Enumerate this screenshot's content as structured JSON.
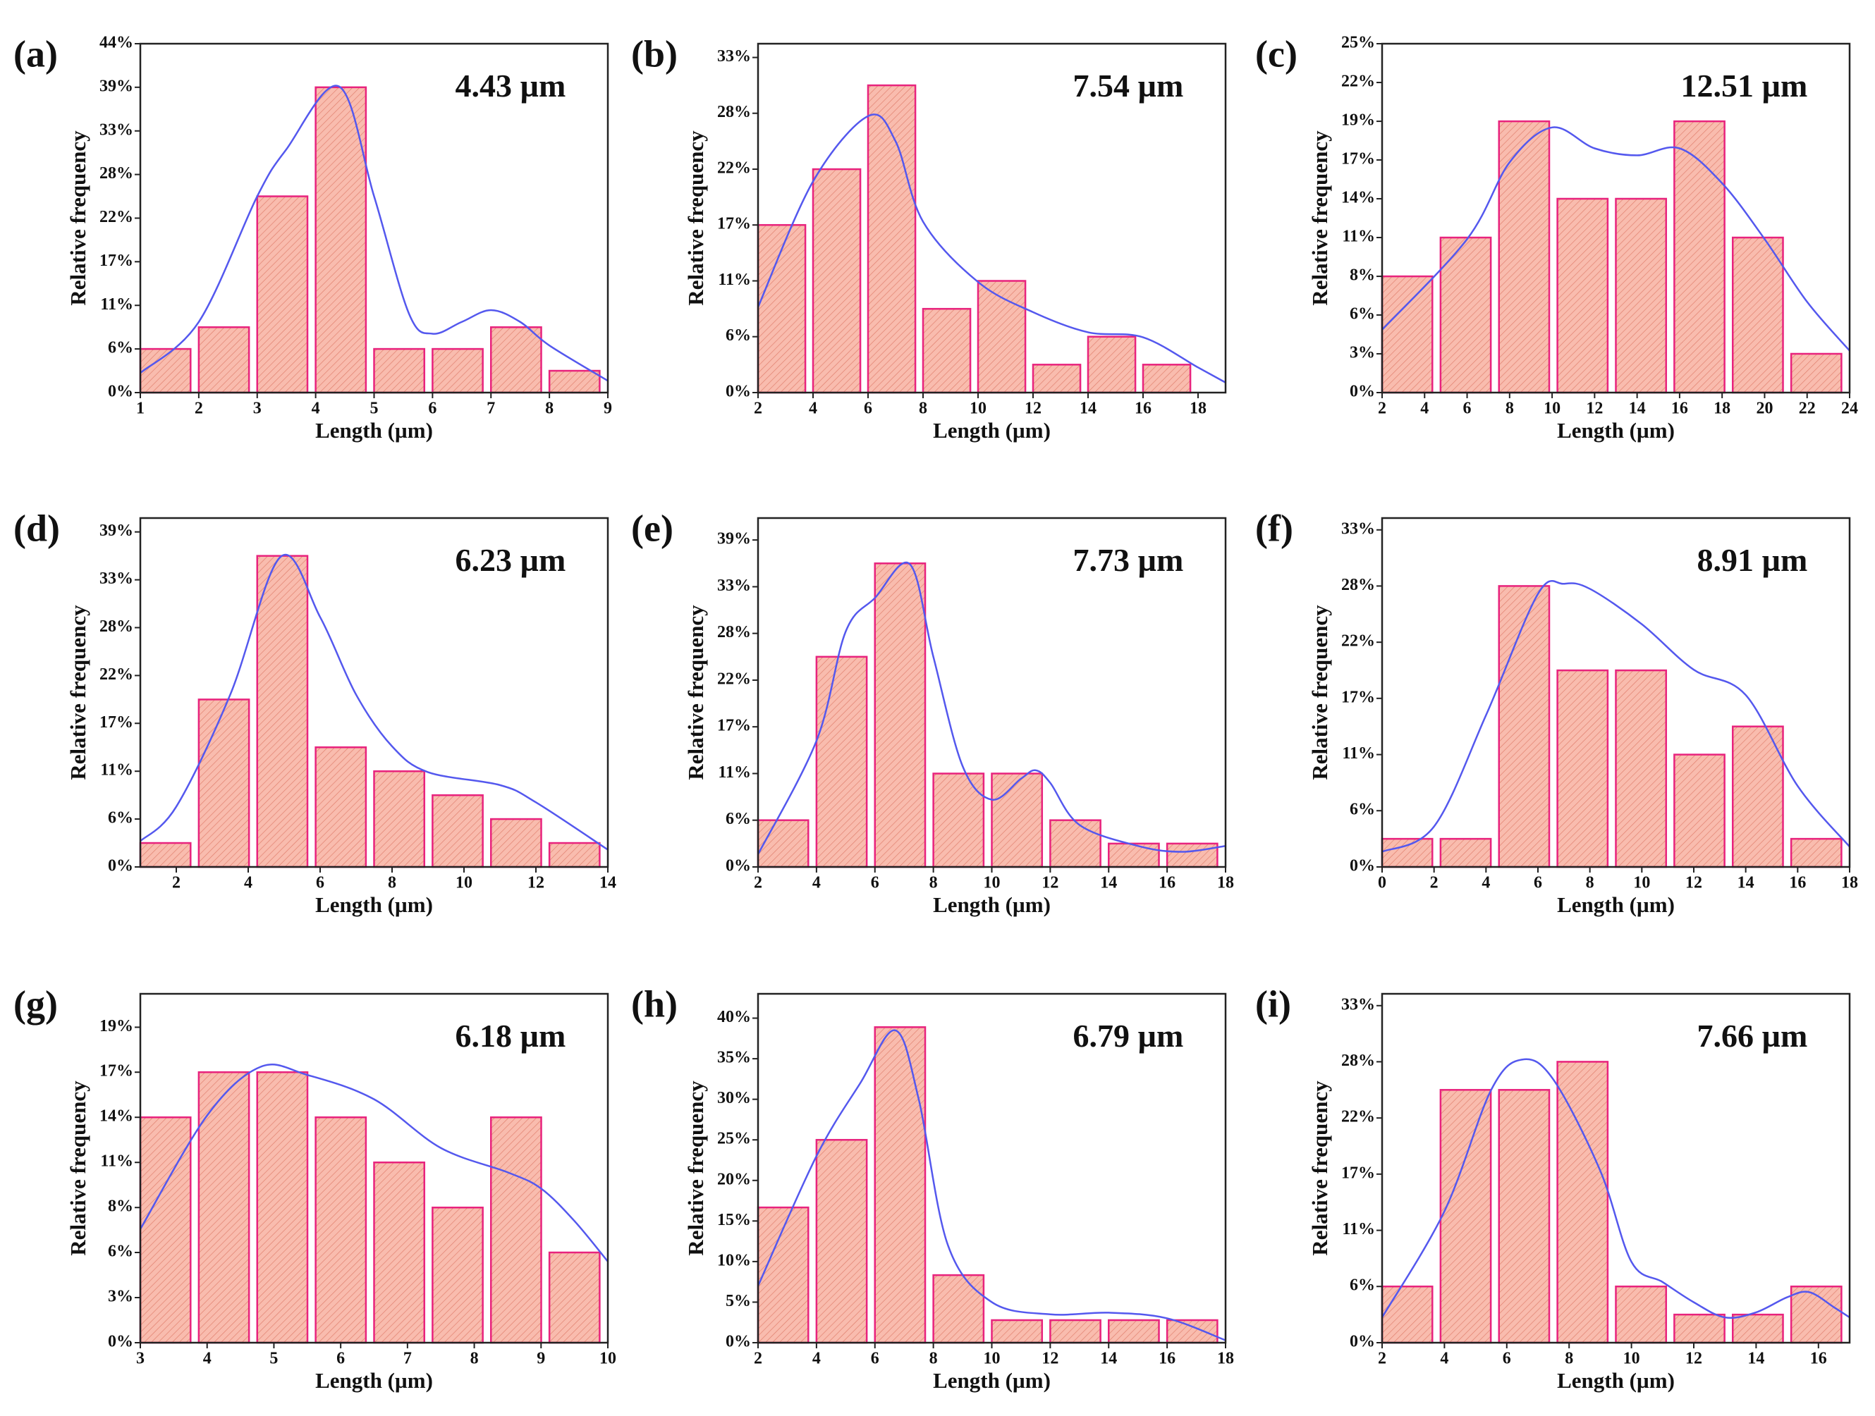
{
  "chart_data": [
    {
      "type": "histogram",
      "label": "(a)",
      "annotation": "4.43 µm",
      "xlabel": "Length (µm)",
      "ylabel": "Relative frequency",
      "bins": [
        1,
        2,
        3,
        4,
        5,
        6,
        7,
        8,
        9
      ],
      "values": [
        5.56,
        8.33,
        25,
        38.89,
        5.56,
        5.56,
        8.33,
        2.78
      ],
      "fit": {
        "x": [
          1,
          2,
          3,
          3.5,
          4.4,
          5,
          5.6,
          6,
          6.5,
          7,
          7.5,
          8,
          9
        ],
        "values": [
          2.5,
          9,
          25,
          31,
          39,
          25,
          10,
          7.5,
          9,
          10.5,
          9,
          6,
          1.5
        ]
      },
      "xlim": [
        1,
        9
      ],
      "xticks": [
        1,
        2,
        3,
        4,
        5,
        6,
        7,
        8,
        9
      ],
      "ylim": [
        0,
        44.44
      ],
      "yticks": [
        {
          "value": 0,
          "label": "0%"
        },
        {
          "value": 5.56,
          "label": "6%"
        },
        {
          "value": 11.11,
          "label": "11%"
        },
        {
          "value": 16.67,
          "label": "17%"
        },
        {
          "value": 22.22,
          "label": "22%"
        },
        {
          "value": 27.78,
          "label": "28%"
        },
        {
          "value": 33.33,
          "label": "33%"
        },
        {
          "value": 38.89,
          "label": "39%"
        },
        {
          "value": 44.44,
          "label": "44%"
        }
      ],
      "bar_color": "#f9bcae",
      "edge_color": "#e8237d",
      "line_color": "#5458ee"
    },
    {
      "type": "histogram",
      "label": "(b)",
      "annotation": "7.54 µm",
      "xlabel": "Length (µm)",
      "ylabel": "Relative frequency",
      "bins": [
        2,
        4,
        6,
        8,
        10,
        12,
        14,
        16,
        18
      ],
      "values": [
        16.67,
        22.22,
        30.56,
        8.33,
        11.11,
        2.78,
        5.56,
        2.78
      ],
      "fit": {
        "x": [
          2,
          4,
          6,
          7,
          8,
          10,
          12,
          14,
          16,
          18,
          19
        ],
        "values": [
          8.5,
          21,
          27.5,
          25,
          17,
          11,
          8,
          6,
          5.5,
          2.5,
          1
        ]
      },
      "xlim": [
        2,
        19
      ],
      "xticks": [
        2,
        4,
        6,
        8,
        10,
        12,
        14,
        16,
        18
      ],
      "ylim": [
        0,
        34.7
      ],
      "yticks": [
        {
          "value": 0,
          "label": "0%"
        },
        {
          "value": 5.56,
          "label": "6%"
        },
        {
          "value": 11.11,
          "label": "11%"
        },
        {
          "value": 16.67,
          "label": "17%"
        },
        {
          "value": 22.22,
          "label": "22%"
        },
        {
          "value": 27.78,
          "label": "28%"
        },
        {
          "value": 33.33,
          "label": "33%"
        }
      ],
      "bar_color": "#f9bcae",
      "edge_color": "#e8237d",
      "line_color": "#5458ee"
    },
    {
      "type": "histogram",
      "label": "(c)",
      "annotation": "12.51 µm",
      "xlabel": "Length (µm)",
      "ylabel": "Relative frequency",
      "bins": [
        2,
        4.75,
        7.5,
        10.25,
        13,
        15.75,
        18.5,
        21.25,
        24
      ],
      "values": [
        8.33,
        11.11,
        19.44,
        13.89,
        13.89,
        19.44,
        11.11,
        2.78
      ],
      "fit": {
        "x": [
          2,
          6,
          8,
          10,
          12,
          14,
          16,
          18,
          20,
          22,
          24
        ],
        "values": [
          4.5,
          11,
          16.5,
          19,
          17.5,
          17,
          17.5,
          15,
          11,
          6.5,
          3
        ]
      },
      "xlim": [
        2,
        24
      ],
      "xticks": [
        2,
        4,
        6,
        8,
        10,
        12,
        14,
        16,
        18,
        20,
        22,
        24
      ],
      "ylim": [
        0,
        25
      ],
      "yticks": [
        {
          "value": 0,
          "label": "0%"
        },
        {
          "value": 2.78,
          "label": "3%"
        },
        {
          "value": 5.56,
          "label": "6%"
        },
        {
          "value": 8.33,
          "label": "8%"
        },
        {
          "value": 11.11,
          "label": "11%"
        },
        {
          "value": 13.89,
          "label": "14%"
        },
        {
          "value": 16.67,
          "label": "17%"
        },
        {
          "value": 19.44,
          "label": "19%"
        },
        {
          "value": 22.22,
          "label": "22%"
        },
        {
          "value": 25,
          "label": "25%"
        }
      ],
      "bar_color": "#f9bcae",
      "edge_color": "#e8237d",
      "line_color": "#5458ee"
    },
    {
      "type": "histogram",
      "label": "(d)",
      "annotation": "6.23 µm",
      "xlabel": "Length (µm)",
      "ylabel": "Relative frequency",
      "bins": [
        1,
        2.625,
        4.25,
        5.875,
        7.5,
        9.125,
        10.75,
        12.375,
        14
      ],
      "values": [
        2.78,
        19.44,
        36.11,
        13.89,
        11.11,
        8.33,
        5.56,
        2.78
      ],
      "fit": {
        "x": [
          1,
          2,
          3.5,
          4.9,
          6,
          7,
          8,
          9,
          11,
          12,
          14
        ],
        "values": [
          3,
          7,
          20,
          36,
          29,
          20,
          14,
          11,
          9.5,
          7.5,
          2
        ]
      },
      "xlim": [
        1,
        14
      ],
      "xticks": [
        2,
        4,
        6,
        8,
        10,
        12,
        14
      ],
      "ylim": [
        0,
        40.5
      ],
      "yticks": [
        {
          "value": 0,
          "label": "0%"
        },
        {
          "value": 5.56,
          "label": "6%"
        },
        {
          "value": 11.11,
          "label": "11%"
        },
        {
          "value": 16.67,
          "label": "17%"
        },
        {
          "value": 22.22,
          "label": "22%"
        },
        {
          "value": 27.78,
          "label": "28%"
        },
        {
          "value": 33.33,
          "label": "33%"
        },
        {
          "value": 38.89,
          "label": "39%"
        }
      ],
      "bar_color": "#f9bcae",
      "edge_color": "#e8237d",
      "line_color": "#5458ee"
    },
    {
      "type": "histogram",
      "label": "(e)",
      "annotation": "7.73 µm",
      "xlabel": "Length (µm)",
      "ylabel": "Relative frequency",
      "bins": [
        2,
        4,
        6,
        8,
        10,
        12,
        14,
        16,
        18
      ],
      "values": [
        5.56,
        25,
        36.11,
        11.11,
        11.11,
        5.56,
        2.78,
        2.78
      ],
      "fit": {
        "x": [
          2,
          4,
          5,
          6,
          7.2,
          8,
          9,
          10,
          11,
          11.5,
          12,
          13,
          15,
          16.5,
          18
        ],
        "values": [
          1.5,
          15,
          28,
          32,
          36,
          25,
          12,
          8,
          10.5,
          11.5,
          10,
          5,
          2.5,
          1.8,
          2.5
        ]
      },
      "xlim": [
        2,
        18
      ],
      "xticks": [
        2,
        4,
        6,
        8,
        10,
        12,
        14,
        16,
        18
      ],
      "ylim": [
        0,
        41.5
      ],
      "yticks": [
        {
          "value": 0,
          "label": "0%"
        },
        {
          "value": 5.56,
          "label": "6%"
        },
        {
          "value": 11.11,
          "label": "11%"
        },
        {
          "value": 16.67,
          "label": "17%"
        },
        {
          "value": 22.22,
          "label": "22%"
        },
        {
          "value": 27.78,
          "label": "28%"
        },
        {
          "value": 33.33,
          "label": "33%"
        },
        {
          "value": 38.89,
          "label": "39%"
        }
      ],
      "bar_color": "#f9bcae",
      "edge_color": "#e8237d",
      "line_color": "#5458ee"
    },
    {
      "type": "histogram",
      "label": "(f)",
      "annotation": "8.91 µm",
      "xlabel": "Length (µm)",
      "ylabel": "Relative frequency",
      "bins": [
        0,
        2.25,
        4.5,
        6.75,
        9,
        11.25,
        13.5,
        15.75,
        18
      ],
      "values": [
        2.78,
        2.78,
        27.78,
        19.44,
        19.44,
        11.11,
        13.89,
        2.78
      ],
      "fit": {
        "x": [
          0,
          2,
          4,
          6,
          7,
          8,
          10,
          12,
          14,
          16,
          18
        ],
        "values": [
          1.5,
          4,
          15,
          27,
          28,
          27.5,
          24,
          19.5,
          17,
          8,
          2
        ]
      },
      "xlim": [
        0,
        18
      ],
      "xticks": [
        0,
        2,
        4,
        6,
        8,
        10,
        12,
        14,
        16,
        18
      ],
      "ylim": [
        0,
        34.5
      ],
      "yticks": [
        {
          "value": 0,
          "label": "0%"
        },
        {
          "value": 5.56,
          "label": "6%"
        },
        {
          "value": 11.11,
          "label": "11%"
        },
        {
          "value": 16.67,
          "label": "17%"
        },
        {
          "value": 22.22,
          "label": "22%"
        },
        {
          "value": 27.78,
          "label": "28%"
        },
        {
          "value": 33.33,
          "label": "33%"
        }
      ],
      "bar_color": "#f9bcae",
      "edge_color": "#e8237d",
      "line_color": "#5458ee"
    },
    {
      "type": "histogram",
      "label": "(g)",
      "annotation": "6.18 µm",
      "xlabel": "Length (µm)",
      "ylabel": "Relative frequency",
      "bins": [
        3,
        3.875,
        4.75,
        5.625,
        6.5,
        7.375,
        8.25,
        9.125,
        10
      ],
      "values": [
        13.89,
        16.67,
        16.67,
        13.89,
        11.11,
        8.33,
        13.89,
        5.56
      ],
      "fit": {
        "x": [
          3,
          4,
          4.8,
          5.5,
          6.5,
          7.5,
          8.5,
          9,
          9.5,
          10
        ],
        "values": [
          7,
          14,
          17,
          16.5,
          15,
          12,
          10.5,
          9.5,
          7.5,
          5
        ]
      },
      "xlim": [
        3,
        10
      ],
      "xticks": [
        3,
        4,
        5,
        6,
        7,
        8,
        9,
        10
      ],
      "ylim": [
        0,
        21.5
      ],
      "yticks": [
        {
          "value": 0,
          "label": "0%"
        },
        {
          "value": 2.78,
          "label": "3%"
        },
        {
          "value": 5.56,
          "label": "6%"
        },
        {
          "value": 8.33,
          "label": "8%"
        },
        {
          "value": 11.11,
          "label": "11%"
        },
        {
          "value": 13.89,
          "label": "14%"
        },
        {
          "value": 16.67,
          "label": "17%"
        },
        {
          "value": 19.44,
          "label": "19%"
        }
      ],
      "bar_color": "#f9bcae",
      "edge_color": "#e8237d",
      "line_color": "#5458ee"
    },
    {
      "type": "histogram",
      "label": "(h)",
      "annotation": "6.79 µm",
      "xlabel": "Length (µm)",
      "ylabel": "Relative frequency",
      "bins": [
        2,
        4,
        6,
        8,
        10,
        12,
        14,
        16,
        18
      ],
      "values": [
        16.67,
        25,
        38.89,
        8.33,
        2.78,
        2.78,
        2.78,
        2.78
      ],
      "fit": {
        "x": [
          2,
          4,
          5.5,
          6.7,
          7.5,
          8.5,
          10,
          12,
          14,
          16,
          18
        ],
        "values": [
          7,
          23,
          32,
          38.5,
          30,
          12,
          5,
          3.5,
          3.7,
          3,
          0.3
        ]
      },
      "xlim": [
        2,
        18
      ],
      "xticks": [
        2,
        4,
        6,
        8,
        10,
        12,
        14,
        16,
        18
      ],
      "ylim": [
        0,
        43
      ],
      "yticks": [
        {
          "value": 0,
          "label": "0%"
        },
        {
          "value": 5,
          "label": "5%"
        },
        {
          "value": 10,
          "label": "10%"
        },
        {
          "value": 15,
          "label": "15%"
        },
        {
          "value": 20,
          "label": "20%"
        },
        {
          "value": 25,
          "label": "25%"
        },
        {
          "value": 30,
          "label": "30%"
        },
        {
          "value": 35,
          "label": "35%"
        },
        {
          "value": 40,
          "label": "40%"
        }
      ],
      "bar_color": "#f9bcae",
      "edge_color": "#e8237d",
      "line_color": "#5458ee"
    },
    {
      "type": "histogram",
      "label": "(i)",
      "annotation": "7.66 µm",
      "xlabel": "Length (µm)",
      "ylabel": "Relative frequency",
      "bins": [
        2,
        3.875,
        5.75,
        7.625,
        9.5,
        11.375,
        13.25,
        15.125,
        17
      ],
      "values": [
        5.56,
        25,
        25,
        27.78,
        5.56,
        2.78,
        2.78,
        5.56
      ],
      "fit": {
        "x": [
          2,
          4,
          5.5,
          6.5,
          7.5,
          9,
          10,
          11,
          12,
          13,
          14,
          15,
          15.7,
          16.5,
          17
        ],
        "values": [
          2.5,
          13,
          25,
          28,
          26,
          17,
          8,
          6,
          4,
          2.5,
          3,
          4.5,
          5,
          3.5,
          2.5
        ]
      },
      "xlim": [
        2,
        17
      ],
      "xticks": [
        2,
        4,
        6,
        8,
        10,
        12,
        14,
        16
      ],
      "ylim": [
        0,
        34.5
      ],
      "yticks": [
        {
          "value": 0,
          "label": "0%"
        },
        {
          "value": 5.56,
          "label": "6%"
        },
        {
          "value": 11.11,
          "label": "11%"
        },
        {
          "value": 16.67,
          "label": "17%"
        },
        {
          "value": 22.22,
          "label": "22%"
        },
        {
          "value": 27.78,
          "label": "28%"
        },
        {
          "value": 33.33,
          "label": "33%"
        }
      ],
      "bar_color": "#f9bcae",
      "edge_color": "#e8237d",
      "line_color": "#5458ee"
    }
  ]
}
